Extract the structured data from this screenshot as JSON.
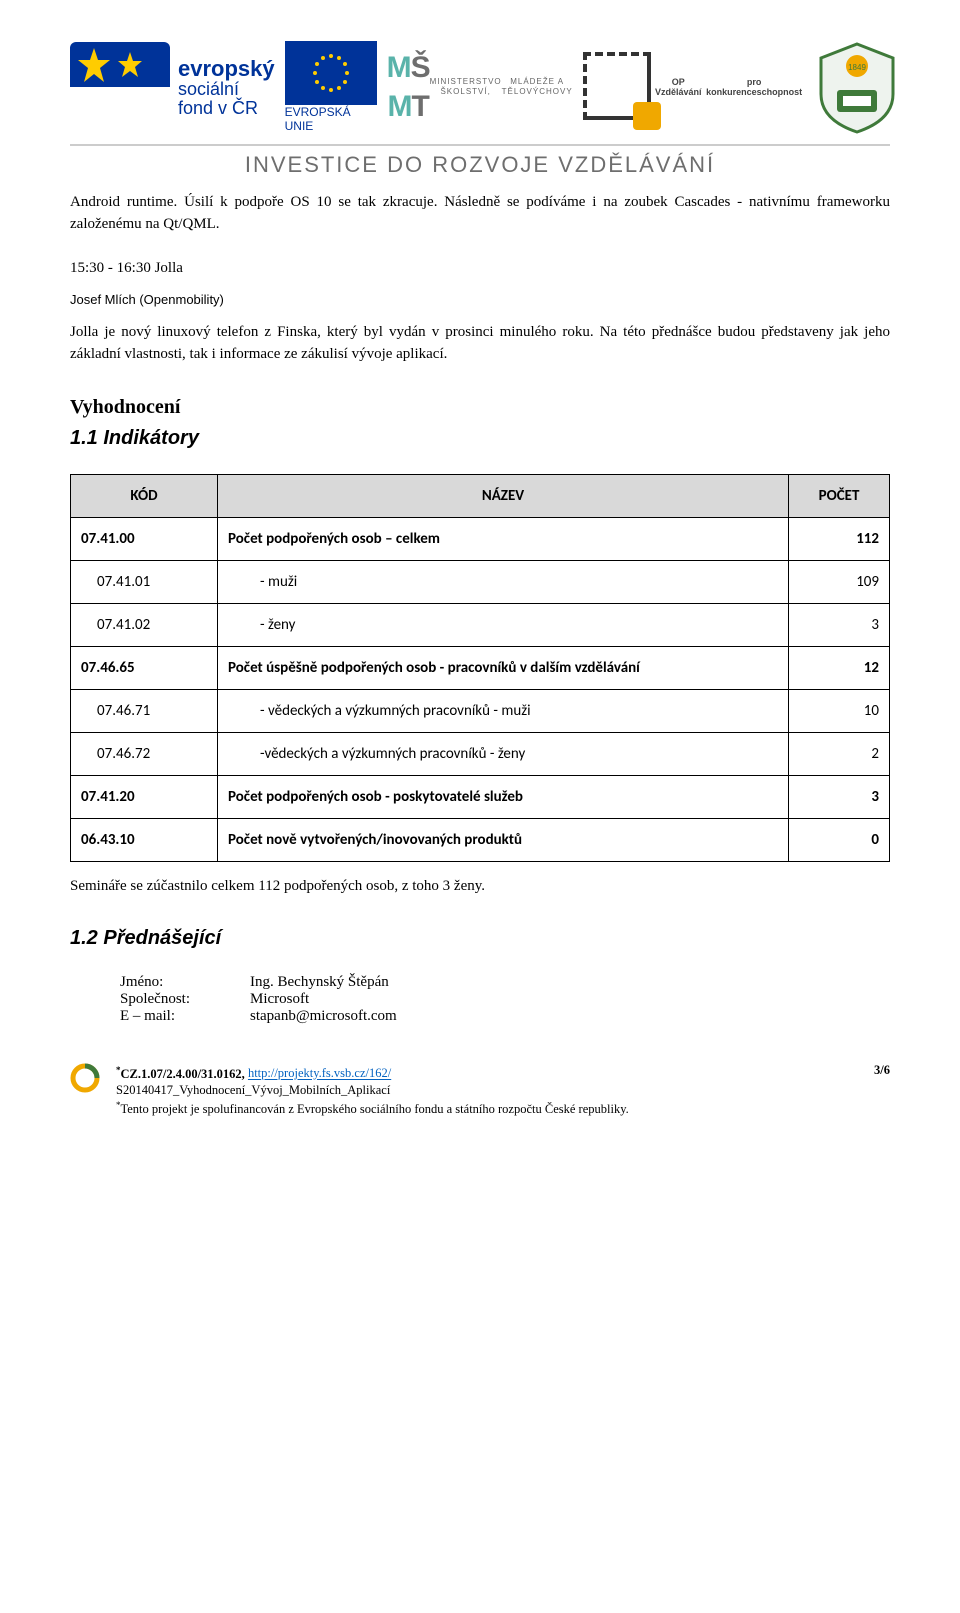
{
  "header": {
    "esf_lines": [
      "evropský",
      "sociální",
      "fond v ČR"
    ],
    "eu_label": "EVROPSKÁ UNIE",
    "msmt_line1": "MINISTERSTVO ŠKOLSTVÍ,",
    "msmt_line2": "MLÁDEŽE A TĚLOVÝCHOVY",
    "op_line1": "OP Vzdělávání",
    "op_line2": "pro konkurenceschopnost",
    "banner": "INVESTICE DO ROZVOJE VZDĚLÁVÁNÍ"
  },
  "body": {
    "para1": "Android runtime. Úsilí k podpoře OS 10 se tak zkracuje. Následně se podíváme i na zoubek Cascades - nativnímu frameworku založenému na Qt/QML.",
    "talk_time": "15:30 - 16:30 Jolla",
    "talk_author": "Josef Mlích (Openmobility)",
    "para2": "Jolla je nový linuxový telefon z Finska, který byl vydán v prosinci minulého roku. Na této přednášce budou představeny jak jeho základní vlastnosti, tak i informace ze zákulisí vývoje aplikací.",
    "h2": "Vyhodnocení",
    "h3_1": "1.1  Indikátory",
    "summary": "Semináře se zúčastnilo celkem 112 podpořených osob, z toho 3 ženy.",
    "h3_2": "1.2  Přednášející"
  },
  "table": {
    "headers": {
      "code": "KÓD",
      "name": "NÁZEV",
      "count": "POČET"
    },
    "rows": [
      {
        "bold": true,
        "sub": false,
        "code": "07.41.00",
        "name": "Počet podpořených osob – celkem",
        "count": "112"
      },
      {
        "bold": false,
        "sub": true,
        "code": "07.41.01",
        "name": "- muži",
        "count": "109"
      },
      {
        "bold": false,
        "sub": true,
        "code": "07.41.02",
        "name": "- ženy",
        "count": "3"
      },
      {
        "bold": true,
        "sub": false,
        "code": "07.46.65",
        "name": "Počet úspěšně podpořených osob - pracovníků v dalším vzdělávání",
        "count": "12"
      },
      {
        "bold": false,
        "sub": true,
        "code": "07.46.71",
        "name": "- vědeckých a výzkumných pracovníků - muži",
        "count": "10"
      },
      {
        "bold": false,
        "sub": true,
        "code": "07.46.72",
        "name": "-vědeckých a výzkumných pracovníků - ženy",
        "count": "2"
      },
      {
        "bold": true,
        "sub": false,
        "code": "07.41.20",
        "name": "Počet podpořených osob - poskytovatelé služeb",
        "count": "3"
      },
      {
        "bold": true,
        "sub": false,
        "code": "06.43.10",
        "name": "Počet nově vytvořených/inovovaných produktů",
        "count": "0"
      }
    ]
  },
  "presenter": {
    "name_label": "Jméno:",
    "name_value": "Ing. Bechynský Štěpán",
    "company_label": "Společnost:",
    "company_value": "Microsoft",
    "email_label": "E – mail:",
    "email_value": "stapanb@microsoft.com"
  },
  "footer": {
    "proj_code_prefix": "*",
    "proj_code": "CZ.1.07/2.4.00/31.0162, ",
    "proj_url": "http://projekty.fs.vsb.cz/162/",
    "file_line": "S20140417_Vyhodnocení_Vývoj_Mobilních_Aplikací",
    "disclaimer_prefix": "*",
    "disclaimer": "Tento projekt je spolufinancován z Evropského sociálního fondu a státního rozpočtu České republiky.",
    "page_num": "3/6"
  },
  "colors": {
    "eu_blue": "#003399",
    "eu_gold": "#ffcc00",
    "teal": "#5ab3aa",
    "gray": "#6e6e6e",
    "header_gray": "#d9d9d9",
    "link": "#0563c1",
    "orange": "#f0a800",
    "uni_green": "#3f7a3a"
  }
}
